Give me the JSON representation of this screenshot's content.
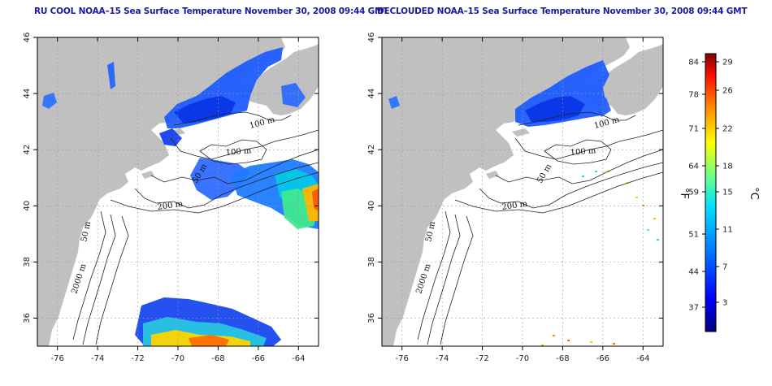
{
  "panels": [
    {
      "id": "left",
      "title": "RU COOL NOAA–15 Sea Surface Temperature November 30, 2008 09:44 GMT"
    },
    {
      "id": "right",
      "title": "DECLOUDED NOAA–15 Sea Surface Temperature November 30, 2008 09:44 GMT"
    }
  ],
  "map": {
    "lon_range": [
      -77,
      -63
    ],
    "lat_range": [
      35,
      46
    ],
    "x_ticks": [
      "-76",
      "-74",
      "-72",
      "-70",
      "-68",
      "-66",
      "-64"
    ],
    "y_ticks": [
      "46",
      "44",
      "42",
      "40",
      "38",
      "36"
    ],
    "land_color": "#c0c0c0",
    "ocean_color": "#ffffff",
    "grid": "dotted",
    "contour_labels": [
      "100 m",
      "100 m",
      "50 m",
      "200 m",
      "50 m",
      "2000 m"
    ]
  },
  "colorbar": {
    "fahrenheit_ticks": [
      "84",
      "78",
      "71",
      "64",
      "59",
      "51",
      "44",
      "37"
    ],
    "celsius_ticks": [
      "29",
      "26",
      "22",
      "18",
      "15",
      "11",
      "7",
      "3"
    ],
    "fahrenheit_label": "°F",
    "celsius_label": "°C",
    "colors": [
      "#00007f",
      "#0000ff",
      "#007fff",
      "#00ffff",
      "#7fff7f",
      "#ffff00",
      "#ff7f00",
      "#ff0000",
      "#7f0000"
    ]
  }
}
